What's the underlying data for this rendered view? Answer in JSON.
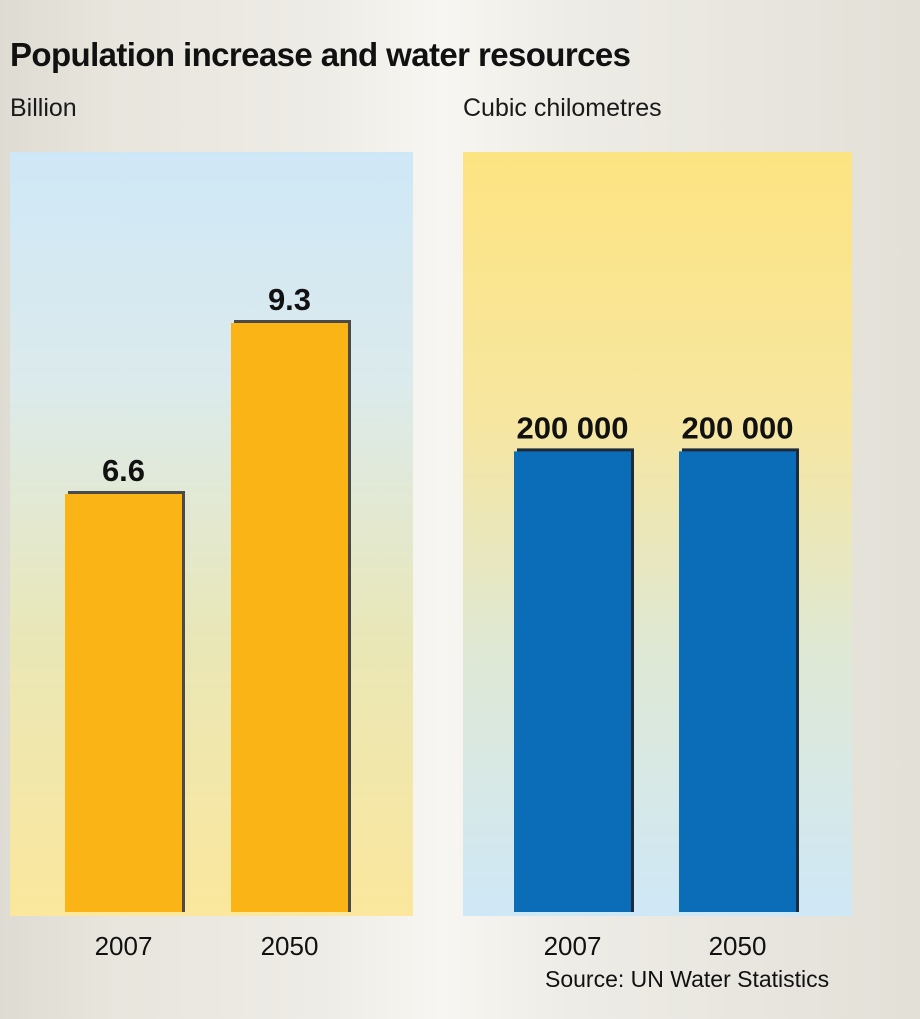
{
  "chart_data": [
    {
      "type": "bar",
      "title": "Population increase and water resources",
      "ylabel": "Billion",
      "categories": [
        "2007",
        "2050"
      ],
      "values": [
        6.6,
        9.3
      ],
      "value_labels": [
        "6.6",
        "9.3"
      ],
      "ylim": [
        0,
        12
      ],
      "bar_color": "#fbb416",
      "shadow_color": "#4a4a4a"
    },
    {
      "type": "bar",
      "ylabel": "Cubic chilometres",
      "categories": [
        "2007",
        "2050"
      ],
      "values": [
        200000,
        200000
      ],
      "value_labels": [
        "200 000",
        "200 000"
      ],
      "ylim": [
        0,
        330000
      ],
      "bar_color": "#0b6cb8",
      "shadow_color": "#1d2a3a"
    }
  ],
  "header": {
    "title": "Population increase and water resources",
    "left_unit": "Billion",
    "right_unit": "Cubic chilometres"
  },
  "footer": {
    "source": "Source: UN Water Statistics"
  }
}
